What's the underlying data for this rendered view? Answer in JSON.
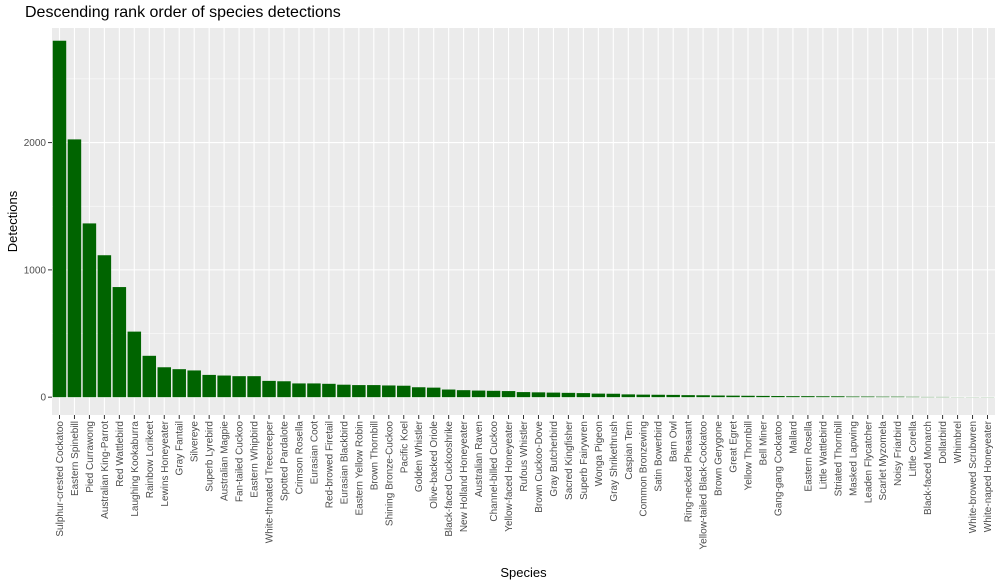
{
  "chart_data": {
    "type": "bar",
    "title": "Descending rank order of species detections",
    "xlabel": "Species",
    "ylabel": "Detections",
    "ylim": [
      0,
      2900
    ],
    "yticks": [
      0,
      1000,
      2000
    ],
    "grid": true,
    "bar_color": "#006400",
    "panel_color": "#ebebeb",
    "categories": [
      "Sulphur-crested Cockatoo",
      "Eastern Spinebill",
      "Pied Currawong",
      "Australian King-Parrot",
      "Red Wattlebird",
      "Laughing Kookaburra",
      "Rainbow Lorikeet",
      "Lewins Honeyeater",
      "Gray Fantail",
      "Silvereye",
      "Superb Lyrebird",
      "Australian Magpie",
      "Fan-tailed Cuckoo",
      "Eastern Whipbird",
      "White-throated Treecreeper",
      "Spotted Pardalote",
      "Crimson Rosella",
      "Eurasian Coot",
      "Red-browed Firetail",
      "Eurasian Blackbird",
      "Eastern Yellow Robin",
      "Brown Thornbill",
      "Shining Bronze-Cuckoo",
      "Pacific Koel",
      "Golden Whistler",
      "Olive-backed Oriole",
      "Black-faced Cuckooshrike",
      "New Holland Honeyeater",
      "Australian Raven",
      "Channel-billed Cuckoo",
      "Yellow-faced Honeyeater",
      "Rufous Whistler",
      "Brown Cuckoo-Dove",
      "Gray Butcherbird",
      "Sacred Kingfisher",
      "Superb Fairywren",
      "Wonga Pigeon",
      "Gray Shrikethrush",
      "Caspian Tern",
      "Common Bronzewing",
      "Satin Bowerbird",
      "Barn Owl",
      "Ring-necked Pheasant",
      "Yellow-tailed Black-Cockatoo",
      "Brown Gerygone",
      "Great Egret",
      "Yellow Thornbill",
      "Bell Miner",
      "Gang-gang Cockatoo",
      "Mallard",
      "Eastern Rosella",
      "Little Wattlebird",
      "Striated Thornbill",
      "Masked Lapwing",
      "Leaden Flycatcher",
      "Scarlet Myzomela",
      "Noisy Friarbird",
      "Little Corella",
      "Black-faced Monarch",
      "Dollarbird",
      "Whimbrel",
      "White-browed Scrubwren",
      "White-naped Honeyeater"
    ],
    "values": [
      2800,
      2025,
      1365,
      1115,
      865,
      515,
      325,
      235,
      220,
      210,
      175,
      170,
      165,
      165,
      128,
      125,
      108,
      108,
      105,
      98,
      95,
      95,
      92,
      90,
      78,
      75,
      60,
      55,
      52,
      50,
      48,
      40,
      38,
      36,
      34,
      32,
      28,
      27,
      22,
      20,
      19,
      18,
      16,
      15,
      13,
      12,
      11,
      10,
      9,
      8,
      8,
      7,
      7,
      5,
      5,
      4,
      4,
      3,
      2,
      2,
      1,
      1,
      1
    ]
  }
}
